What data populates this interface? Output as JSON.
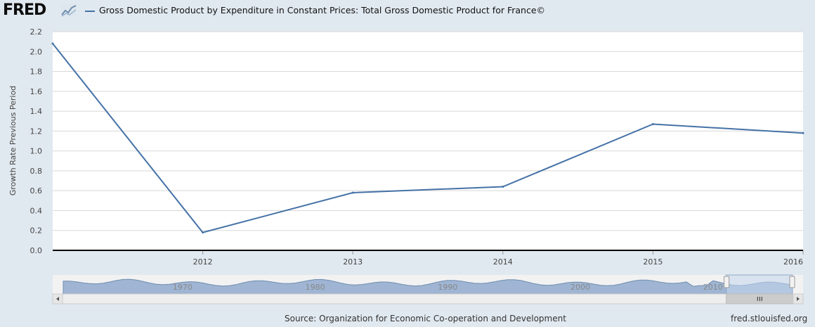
{
  "header": {
    "logo_text": "FRED",
    "logo_icon": "chart-line-icon",
    "legend_label": "Gross Domestic Product by Expenditure in Constant Prices: Total Gross Domestic Product for France©"
  },
  "colors": {
    "series": "#4572a7",
    "background": "#e1e9f0",
    "plot_bg": "#ffffff",
    "navigator_fill": "#9fb5d3"
  },
  "chart_data": {
    "type": "line",
    "title": "Gross Domestic Product by Expenditure in Constant Prices: Total Gross Domestic Product for France©",
    "xlabel": "",
    "ylabel": "Growth Rate Previous Period",
    "x": [
      2011,
      2012,
      2013,
      2014,
      2015,
      2016
    ],
    "x_tick_labels": [
      "2012",
      "2013",
      "2014",
      "2015",
      "2016"
    ],
    "x_tick_values": [
      2012,
      2013,
      2014,
      2015,
      2016
    ],
    "xlim": [
      2011,
      2016
    ],
    "series": [
      {
        "name": "Gross Domestic Product by Expenditure in Constant Prices: Total Gross Domestic Product for France©",
        "values": [
          2.08,
          0.18,
          0.58,
          0.64,
          1.27,
          1.18
        ]
      }
    ],
    "ylim": [
      0,
      2.2
    ],
    "y_tick_labels": [
      "0.0",
      "0.2",
      "0.4",
      "0.6",
      "0.8",
      "1.0",
      "1.2",
      "1.4",
      "1.6",
      "1.8",
      "2.0",
      "2.2"
    ],
    "grid": true
  },
  "navigator": {
    "year_labels": [
      "1970",
      "1980",
      "1990",
      "2000",
      "2010"
    ],
    "year_values": [
      1970,
      1980,
      1990,
      2000,
      2010
    ],
    "range": [
      1961,
      2016
    ],
    "selected_range": [
      2011,
      2016
    ],
    "scroll_left_icon": "arrow-left-icon",
    "scroll_right_icon": "arrow-right-icon",
    "grip_icon": "grip-icon"
  },
  "footer": {
    "source": "Source: Organization for Economic Co-operation and Development",
    "link": "fred.stlouisfed.org"
  }
}
